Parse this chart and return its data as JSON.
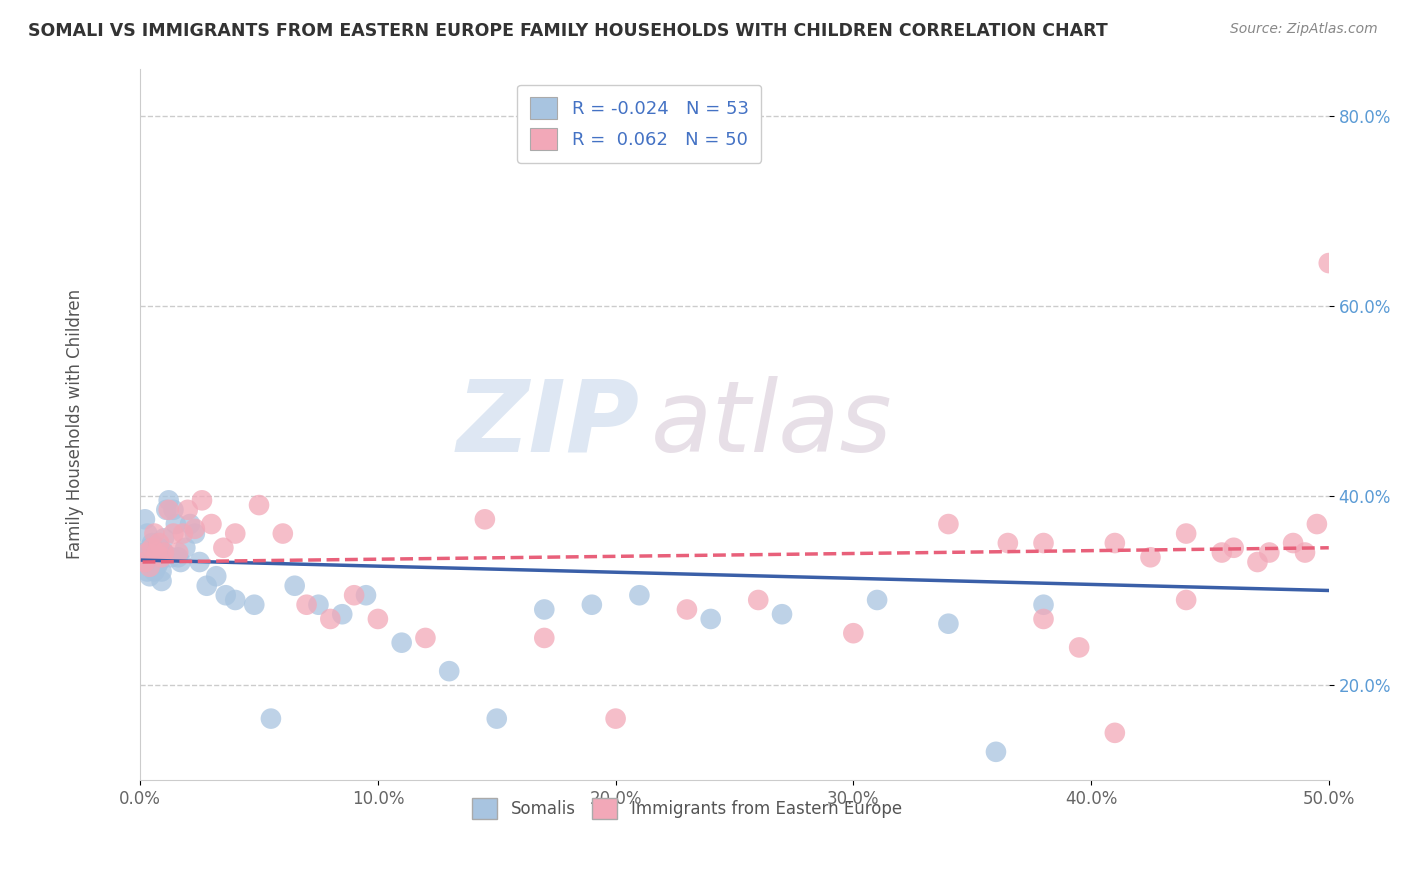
{
  "title": "SOMALI VS IMMIGRANTS FROM EASTERN EUROPE FAMILY HOUSEHOLDS WITH CHILDREN CORRELATION CHART",
  "source": "Source: ZipAtlas.com",
  "ylabel": "Family Households with Children",
  "xlim": [
    0.0,
    0.5
  ],
  "ylim": [
    0.1,
    0.85
  ],
  "xticks": [
    0.0,
    0.1,
    0.2,
    0.3,
    0.4,
    0.5
  ],
  "xticklabels": [
    "0.0%",
    "10.0%",
    "20.0%",
    "30.0%",
    "40.0%",
    "50.0%"
  ],
  "yticks": [
    0.2,
    0.4,
    0.6,
    0.8
  ],
  "yticklabels": [
    "20.0%",
    "40.0%",
    "60.0%",
    "80.0%"
  ],
  "somali_color": "#a8c4e0",
  "eastern_color": "#f2a8b8",
  "trendline_somali_color": "#3a5fa8",
  "trendline_eastern_color": "#e8607a",
  "watermark_zip": "ZIP",
  "watermark_atlas": "atlas",
  "legend_label1": "Somalis",
  "legend_label2": "Immigrants from Eastern Europe",
  "background_color": "#ffffff",
  "grid_color": "#cccccc",
  "tick_color_right": "#5b9bd5",
  "somali_x": [
    0.001,
    0.002,
    0.002,
    0.003,
    0.003,
    0.004,
    0.004,
    0.005,
    0.005,
    0.005,
    0.006,
    0.006,
    0.007,
    0.007,
    0.008,
    0.008,
    0.009,
    0.009,
    0.01,
    0.01,
    0.011,
    0.012,
    0.013,
    0.014,
    0.015,
    0.016,
    0.017,
    0.019,
    0.021,
    0.023,
    0.025,
    0.028,
    0.032,
    0.036,
    0.04,
    0.048,
    0.055,
    0.065,
    0.075,
    0.085,
    0.095,
    0.11,
    0.13,
    0.15,
    0.17,
    0.19,
    0.21,
    0.24,
    0.27,
    0.31,
    0.34,
    0.36,
    0.38
  ],
  "somali_y": [
    0.33,
    0.375,
    0.34,
    0.36,
    0.32,
    0.345,
    0.315,
    0.35,
    0.325,
    0.33,
    0.34,
    0.32,
    0.335,
    0.325,
    0.345,
    0.33,
    0.32,
    0.31,
    0.355,
    0.34,
    0.385,
    0.395,
    0.335,
    0.385,
    0.37,
    0.335,
    0.33,
    0.345,
    0.37,
    0.36,
    0.33,
    0.305,
    0.315,
    0.295,
    0.29,
    0.285,
    0.165,
    0.305,
    0.285,
    0.275,
    0.295,
    0.245,
    0.215,
    0.165,
    0.28,
    0.285,
    0.295,
    0.27,
    0.275,
    0.29,
    0.265,
    0.13,
    0.285
  ],
  "eastern_x": [
    0.002,
    0.003,
    0.004,
    0.005,
    0.006,
    0.007,
    0.008,
    0.009,
    0.01,
    0.012,
    0.014,
    0.016,
    0.018,
    0.02,
    0.023,
    0.026,
    0.03,
    0.035,
    0.04,
    0.05,
    0.06,
    0.07,
    0.08,
    0.09,
    0.1,
    0.12,
    0.145,
    0.17,
    0.2,
    0.23,
    0.26,
    0.3,
    0.34,
    0.38,
    0.41,
    0.44,
    0.46,
    0.475,
    0.49,
    0.5,
    0.495,
    0.485,
    0.47,
    0.455,
    0.44,
    0.425,
    0.41,
    0.395,
    0.38,
    0.365
  ],
  "eastern_y": [
    0.33,
    0.34,
    0.325,
    0.345,
    0.36,
    0.34,
    0.35,
    0.335,
    0.34,
    0.385,
    0.36,
    0.34,
    0.36,
    0.385,
    0.365,
    0.395,
    0.37,
    0.345,
    0.36,
    0.39,
    0.36,
    0.285,
    0.27,
    0.295,
    0.27,
    0.25,
    0.375,
    0.25,
    0.165,
    0.28,
    0.29,
    0.255,
    0.37,
    0.35,
    0.35,
    0.36,
    0.345,
    0.34,
    0.34,
    0.645,
    0.37,
    0.35,
    0.33,
    0.34,
    0.29,
    0.335,
    0.15,
    0.24,
    0.27,
    0.35
  ],
  "trendline_somali_x0": 0.001,
  "trendline_somali_x1": 0.5,
  "trendline_somali_y0": 0.332,
  "trendline_somali_y1": 0.3,
  "trendline_eastern_x0": 0.001,
  "trendline_eastern_x1": 0.5,
  "trendline_eastern_y0": 0.33,
  "trendline_eastern_y1": 0.345
}
